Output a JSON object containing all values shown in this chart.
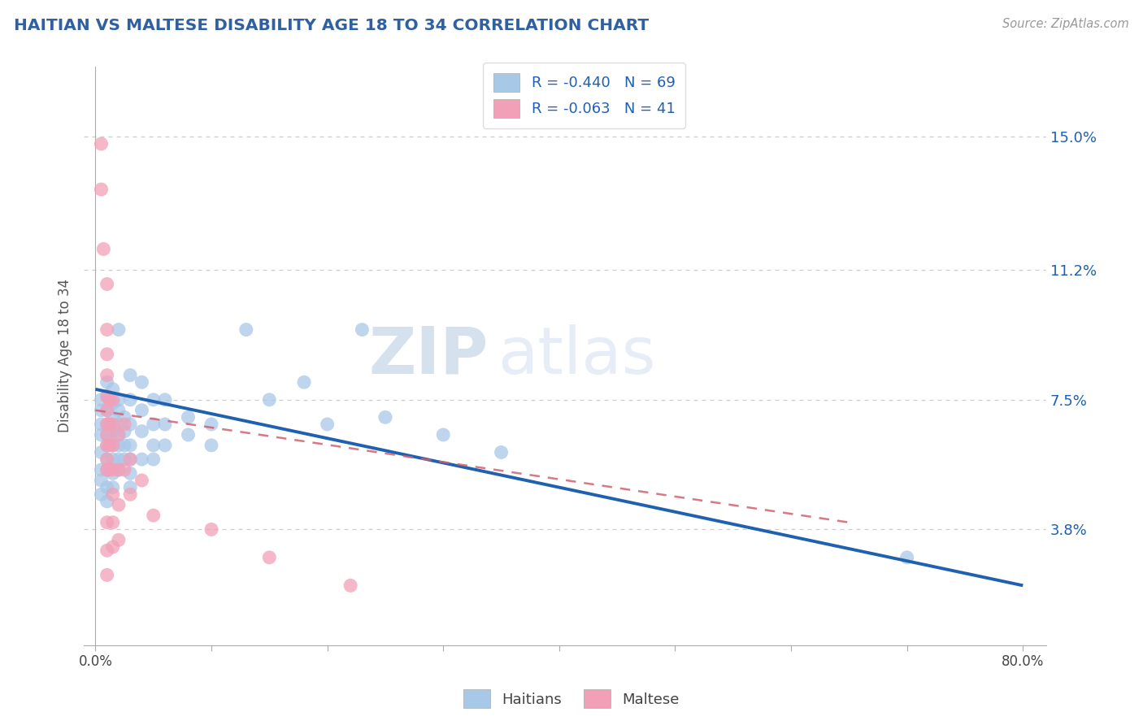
{
  "title": "HAITIAN VS MALTESE DISABILITY AGE 18 TO 34 CORRELATION CHART",
  "source": "Source: ZipAtlas.com",
  "ylabel": "Disability Age 18 to 34",
  "ytick_vals": [
    0.038,
    0.075,
    0.112,
    0.15
  ],
  "ytick_labels": [
    "3.8%",
    "7.5%",
    "11.2%",
    "15.0%"
  ],
  "xtick_vals": [
    0.0,
    0.1,
    0.2,
    0.3,
    0.4,
    0.5,
    0.6,
    0.7,
    0.8
  ],
  "xtick_labels": [
    "0.0%",
    "",
    "",
    "",
    "",
    "",
    "",
    "",
    "80.0%"
  ],
  "xlim": [
    -0.01,
    0.82
  ],
  "ylim": [
    0.005,
    0.17
  ],
  "haitian_color": "#a8c8e8",
  "maltese_color": "#f2a0b8",
  "regression_haitian_color": "#2060b0",
  "regression_maltese_color": "#d06070",
  "watermark_zip": "ZIP",
  "watermark_atlas": "atlas",
  "legend_label_haitian": "Haitians",
  "legend_label_maltese": "Maltese",
  "legend_r_haitian": "R = -0.440",
  "legend_n_haitian": "N = 69",
  "legend_r_maltese": "R = -0.063",
  "legend_n_maltese": "N = 41",
  "haitian_line_x": [
    0.0,
    0.8
  ],
  "haitian_line_y": [
    0.078,
    0.022
  ],
  "maltese_line_x": [
    0.0,
    0.65
  ],
  "maltese_line_y": [
    0.072,
    0.04
  ],
  "haitian_scatter": [
    [
      0.005,
      0.075
    ],
    [
      0.005,
      0.072
    ],
    [
      0.005,
      0.068
    ],
    [
      0.005,
      0.065
    ],
    [
      0.005,
      0.06
    ],
    [
      0.005,
      0.055
    ],
    [
      0.005,
      0.052
    ],
    [
      0.005,
      0.048
    ],
    [
      0.01,
      0.08
    ],
    [
      0.01,
      0.076
    ],
    [
      0.01,
      0.072
    ],
    [
      0.01,
      0.068
    ],
    [
      0.01,
      0.065
    ],
    [
      0.01,
      0.062
    ],
    [
      0.01,
      0.058
    ],
    [
      0.01,
      0.055
    ],
    [
      0.01,
      0.05
    ],
    [
      0.01,
      0.046
    ],
    [
      0.015,
      0.078
    ],
    [
      0.015,
      0.074
    ],
    [
      0.015,
      0.07
    ],
    [
      0.015,
      0.066
    ],
    [
      0.015,
      0.062
    ],
    [
      0.015,
      0.058
    ],
    [
      0.015,
      0.054
    ],
    [
      0.015,
      0.05
    ],
    [
      0.02,
      0.095
    ],
    [
      0.02,
      0.075
    ],
    [
      0.02,
      0.072
    ],
    [
      0.02,
      0.068
    ],
    [
      0.02,
      0.065
    ],
    [
      0.02,
      0.062
    ],
    [
      0.02,
      0.058
    ],
    [
      0.02,
      0.055
    ],
    [
      0.025,
      0.07
    ],
    [
      0.025,
      0.066
    ],
    [
      0.025,
      0.062
    ],
    [
      0.025,
      0.058
    ],
    [
      0.03,
      0.082
    ],
    [
      0.03,
      0.075
    ],
    [
      0.03,
      0.068
    ],
    [
      0.03,
      0.062
    ],
    [
      0.03,
      0.058
    ],
    [
      0.03,
      0.054
    ],
    [
      0.03,
      0.05
    ],
    [
      0.04,
      0.08
    ],
    [
      0.04,
      0.072
    ],
    [
      0.04,
      0.066
    ],
    [
      0.04,
      0.058
    ],
    [
      0.05,
      0.075
    ],
    [
      0.05,
      0.068
    ],
    [
      0.05,
      0.062
    ],
    [
      0.05,
      0.058
    ],
    [
      0.06,
      0.075
    ],
    [
      0.06,
      0.068
    ],
    [
      0.06,
      0.062
    ],
    [
      0.08,
      0.07
    ],
    [
      0.08,
      0.065
    ],
    [
      0.1,
      0.068
    ],
    [
      0.1,
      0.062
    ],
    [
      0.13,
      0.095
    ],
    [
      0.15,
      0.075
    ],
    [
      0.18,
      0.08
    ],
    [
      0.2,
      0.068
    ],
    [
      0.23,
      0.095
    ],
    [
      0.25,
      0.07
    ],
    [
      0.3,
      0.065
    ],
    [
      0.35,
      0.06
    ],
    [
      0.7,
      0.03
    ]
  ],
  "maltese_scatter": [
    [
      0.005,
      0.148
    ],
    [
      0.005,
      0.135
    ],
    [
      0.007,
      0.118
    ],
    [
      0.01,
      0.108
    ],
    [
      0.01,
      0.095
    ],
    [
      0.01,
      0.088
    ],
    [
      0.01,
      0.082
    ],
    [
      0.01,
      0.076
    ],
    [
      0.01,
      0.072
    ],
    [
      0.01,
      0.068
    ],
    [
      0.01,
      0.065
    ],
    [
      0.01,
      0.062
    ],
    [
      0.01,
      0.058
    ],
    [
      0.01,
      0.055
    ],
    [
      0.01,
      0.04
    ],
    [
      0.01,
      0.032
    ],
    [
      0.01,
      0.025
    ],
    [
      0.012,
      0.075
    ],
    [
      0.012,
      0.068
    ],
    [
      0.012,
      0.062
    ],
    [
      0.012,
      0.055
    ],
    [
      0.015,
      0.075
    ],
    [
      0.015,
      0.068
    ],
    [
      0.015,
      0.062
    ],
    [
      0.015,
      0.055
    ],
    [
      0.015,
      0.048
    ],
    [
      0.015,
      0.04
    ],
    [
      0.015,
      0.033
    ],
    [
      0.02,
      0.065
    ],
    [
      0.02,
      0.055
    ],
    [
      0.02,
      0.045
    ],
    [
      0.02,
      0.035
    ],
    [
      0.025,
      0.068
    ],
    [
      0.025,
      0.055
    ],
    [
      0.03,
      0.058
    ],
    [
      0.03,
      0.048
    ],
    [
      0.04,
      0.052
    ],
    [
      0.05,
      0.042
    ],
    [
      0.1,
      0.038
    ],
    [
      0.15,
      0.03
    ],
    [
      0.22,
      0.022
    ]
  ]
}
